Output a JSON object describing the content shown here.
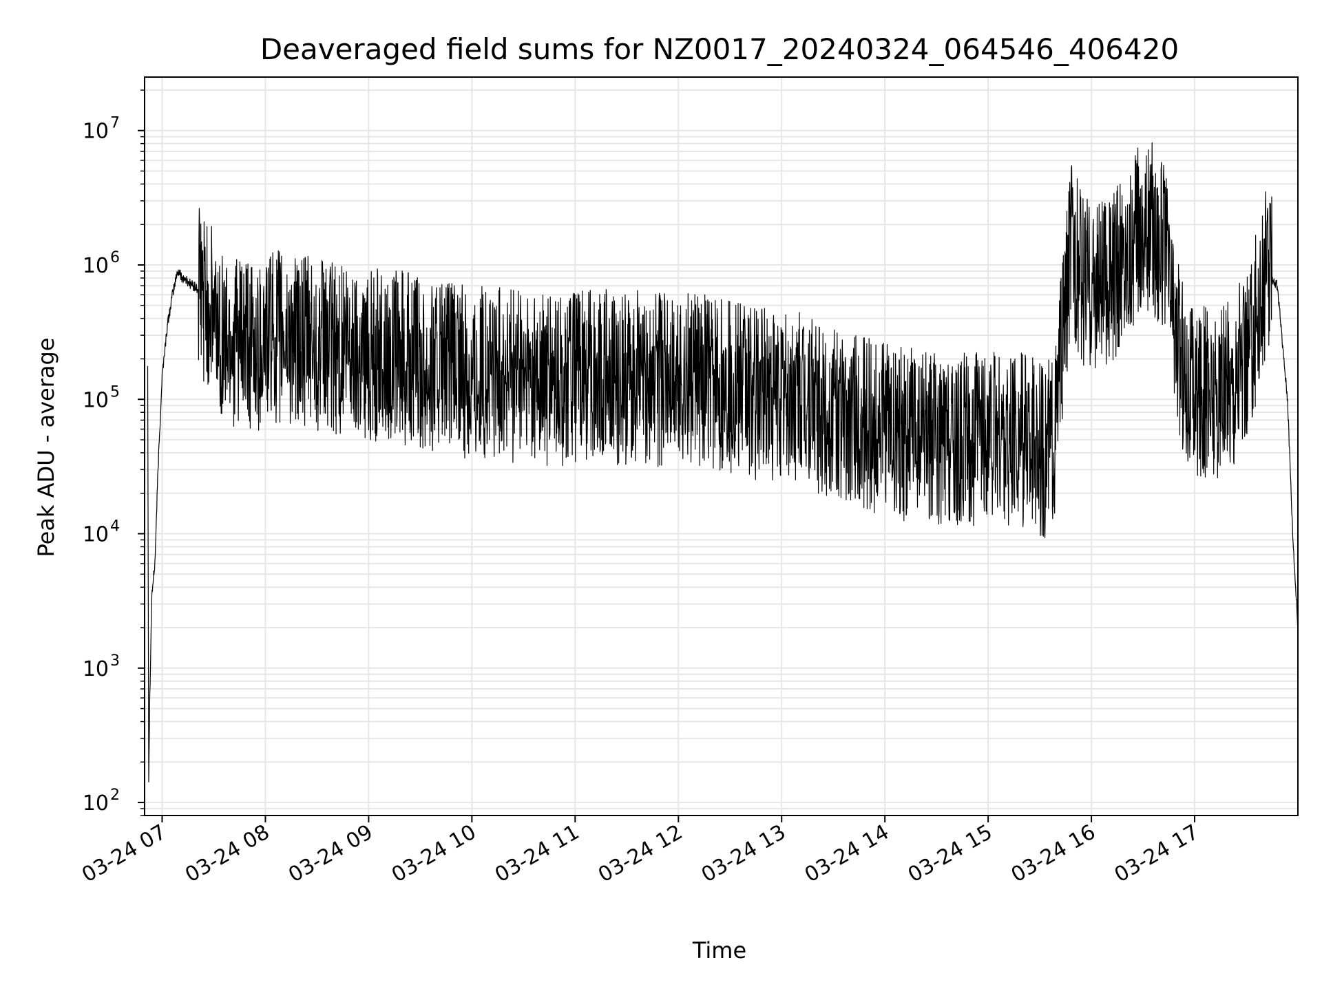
{
  "chart_data": {
    "type": "line",
    "title": "Deaveraged field sums for NZ0017_20240324_064546_406420",
    "xlabel": "Time",
    "ylabel": "Peak ADU - average",
    "y_scale": "log",
    "ylim": [
      80,
      25000000
    ],
    "xlim_hours": [
      6.83,
      18.0
    ],
    "grid": true,
    "line_color": "#000000",
    "grid_color": "#e6e6e6",
    "x_ticks": [
      {
        "value": 7,
        "label": "03-24 07"
      },
      {
        "value": 8,
        "label": "03-24 08"
      },
      {
        "value": 9,
        "label": "03-24 09"
      },
      {
        "value": 10,
        "label": "03-24 10"
      },
      {
        "value": 11,
        "label": "03-24 11"
      },
      {
        "value": 12,
        "label": "03-24 12"
      },
      {
        "value": 13,
        "label": "03-24 13"
      },
      {
        "value": 14,
        "label": "03-24 14"
      },
      {
        "value": 15,
        "label": "03-24 15"
      },
      {
        "value": 16,
        "label": "03-24 16"
      },
      {
        "value": 17,
        "label": "03-24 17"
      }
    ],
    "y_ticks": [
      {
        "value": 100,
        "base": "10",
        "exp": "2"
      },
      {
        "value": 1000,
        "base": "10",
        "exp": "3"
      },
      {
        "value": 10000,
        "base": "10",
        "exp": "4"
      },
      {
        "value": 100000,
        "base": "10",
        "exp": "5"
      },
      {
        "value": 1000000,
        "base": "10",
        "exp": "6"
      },
      {
        "value": 10000000,
        "base": "10",
        "exp": "7"
      }
    ],
    "series": [
      {
        "note_envelope": "noisy single series; values are representative samples read from the plot",
        "points": [
          [
            6.86,
            180000
          ],
          [
            6.87,
            150
          ],
          [
            6.88,
            600
          ],
          [
            6.9,
            3500
          ],
          [
            6.93,
            6000
          ],
          [
            6.96,
            30000
          ],
          [
            7.0,
            150000
          ],
          [
            7.05,
            350000
          ],
          [
            7.1,
            600000
          ],
          [
            7.15,
            900000
          ],
          [
            7.2,
            800000
          ],
          [
            7.3,
            700000
          ],
          [
            7.4,
            600000
          ],
          [
            7.5,
            400000
          ],
          [
            7.6,
            300000
          ],
          [
            7.7,
            280000
          ],
          [
            7.8,
            250000
          ],
          [
            7.9,
            220000
          ],
          [
            8.0,
            300000
          ],
          [
            8.2,
            280000
          ],
          [
            8.4,
            260000
          ],
          [
            8.6,
            250000
          ],
          [
            8.8,
            230000
          ],
          [
            9.0,
            220000
          ],
          [
            9.2,
            210000
          ],
          [
            9.4,
            200000
          ],
          [
            9.6,
            180000
          ],
          [
            9.8,
            170000
          ],
          [
            10.0,
            150000
          ],
          [
            10.2,
            160000
          ],
          [
            10.4,
            150000
          ],
          [
            10.6,
            140000
          ],
          [
            10.8,
            130000
          ],
          [
            11.0,
            150000
          ],
          [
            11.2,
            160000
          ],
          [
            11.4,
            140000
          ],
          [
            11.6,
            150000
          ],
          [
            11.8,
            140000
          ],
          [
            12.0,
            150000
          ],
          [
            12.2,
            140000
          ],
          [
            12.4,
            130000
          ],
          [
            12.6,
            120000
          ],
          [
            12.8,
            110000
          ],
          [
            13.0,
            110000
          ],
          [
            13.2,
            100000
          ],
          [
            13.4,
            80000
          ],
          [
            13.6,
            70000
          ],
          [
            13.8,
            65000
          ],
          [
            14.0,
            60000
          ],
          [
            14.2,
            55000
          ],
          [
            14.4,
            55000
          ],
          [
            14.6,
            50000
          ],
          [
            14.8,
            50000
          ],
          [
            15.0,
            50000
          ],
          [
            15.2,
            50000
          ],
          [
            15.4,
            50000
          ],
          [
            15.55,
            40000
          ],
          [
            15.65,
            60000
          ],
          [
            15.75,
            500000
          ],
          [
            15.8,
            1500000
          ],
          [
            15.9,
            800000
          ],
          [
            16.0,
            700000
          ],
          [
            16.2,
            800000
          ],
          [
            16.4,
            1500000
          ],
          [
            16.5,
            2000000
          ],
          [
            16.6,
            1800000
          ],
          [
            16.7,
            1500000
          ],
          [
            16.8,
            400000
          ],
          [
            16.9,
            150000
          ],
          [
            17.0,
            120000
          ],
          [
            17.1,
            110000
          ],
          [
            17.2,
            100000
          ],
          [
            17.3,
            130000
          ],
          [
            17.4,
            150000
          ],
          [
            17.5,
            200000
          ],
          [
            17.6,
            400000
          ],
          [
            17.7,
            900000
          ],
          [
            17.75,
            800000
          ],
          [
            17.8,
            700000
          ],
          [
            17.9,
            100000
          ],
          [
            17.95,
            10000
          ],
          [
            18.0,
            2000
          ]
        ]
      }
    ]
  }
}
